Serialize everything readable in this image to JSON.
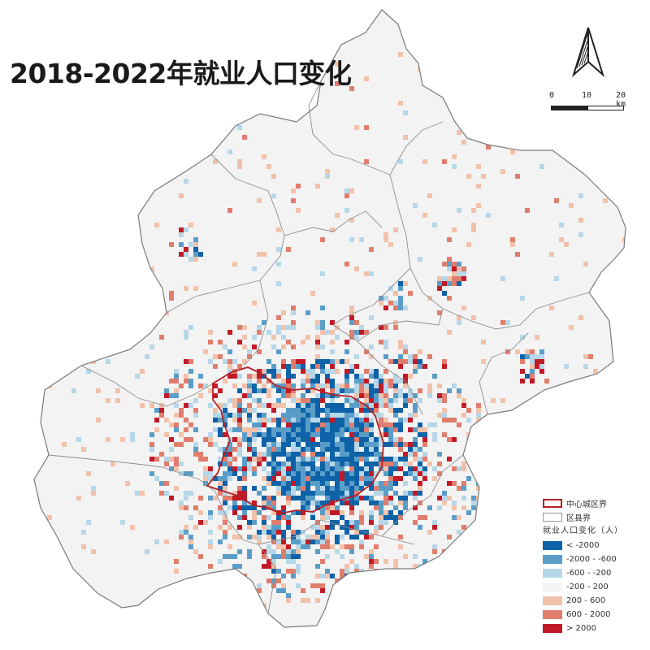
{
  "title": "2018-2022年就业人口变化",
  "north_arrow": {
    "icon": "north-arrow-icon"
  },
  "scale_bar": {
    "labels": [
      "0",
      "10",
      "20 km"
    ]
  },
  "legend": {
    "boundaries": [
      {
        "label": "中心城区界",
        "stroke": "#b51f24"
      },
      {
        "label": "区县界",
        "stroke": "#9a9a9a"
      }
    ],
    "heading": "就业人口变化（人）",
    "classes": [
      {
        "label": "< -2000",
        "color": "#0d62a8"
      },
      {
        "label": "-2000 - -600",
        "color": "#5a9ec8"
      },
      {
        "label": "-600 - -200",
        "color": "#b6d7e8"
      },
      {
        "label": "-200 - 200",
        "color": "#f4f4f4"
      },
      {
        "label": "200 - 600",
        "color": "#f2c1aa"
      },
      {
        "label": "600 - 2000",
        "color": "#e07d6d"
      },
      {
        "label": "> 2000",
        "color": "#c11a27"
      }
    ]
  }
}
